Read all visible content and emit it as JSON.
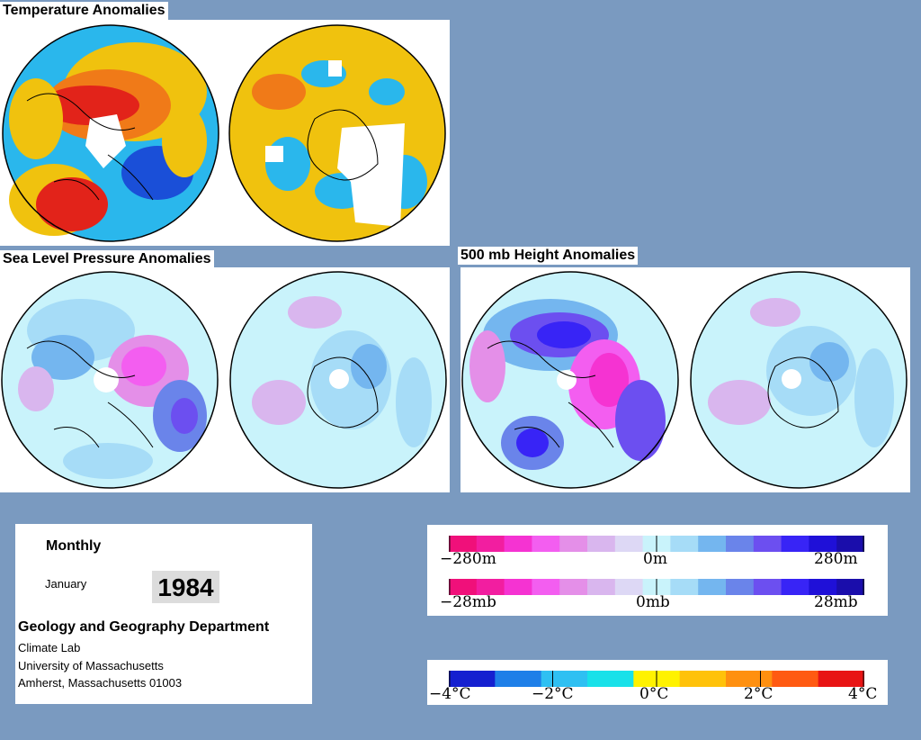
{
  "panels": {
    "temperature": {
      "title": "Temperature Anomalies"
    },
    "slp": {
      "title": "Sea Level Pressure Anomalies"
    },
    "height": {
      "title": "500 mb Height Anomalies"
    }
  },
  "info": {
    "period": "Monthly",
    "month": "January",
    "year": "1984",
    "department": "Geology and Geography Department",
    "lab": "Climate Lab",
    "university": "University of Massachusetts",
    "address": "Amherst, Massachusetts 01003"
  },
  "legends": {
    "height": {
      "min": "−280m",
      "mid": "0m",
      "max": "280m"
    },
    "pressure": {
      "min": "−28mb",
      "mid": "0mb",
      "max": "28mb"
    },
    "temperature": {
      "t1": "−4°C",
      "t2": "−2°C",
      "t3": "0°C",
      "t4": "2°C",
      "t5": "4°C"
    }
  },
  "colors": {
    "background": "#7a9ac0",
    "anomaly_scale_pressure": [
      "#f0107a",
      "#f21ea0",
      "#f533d2",
      "#f35ef0",
      "#e48fe8",
      "#d9b6ee",
      "#ddd8f5",
      "#c9f3fb",
      "#a6dcf7",
      "#74b6ef",
      "#6a84ea",
      "#6c4ff0",
      "#3824f6",
      "#1f10d8",
      "#1a0dab"
    ],
    "temperature_scale": [
      "#1520d0",
      "#1e7fe8",
      "#2fc0f2",
      "#19e1e9",
      "#fff200",
      "#ffc20a",
      "#ff9010",
      "#ff5a12",
      "#e81414"
    ]
  }
}
